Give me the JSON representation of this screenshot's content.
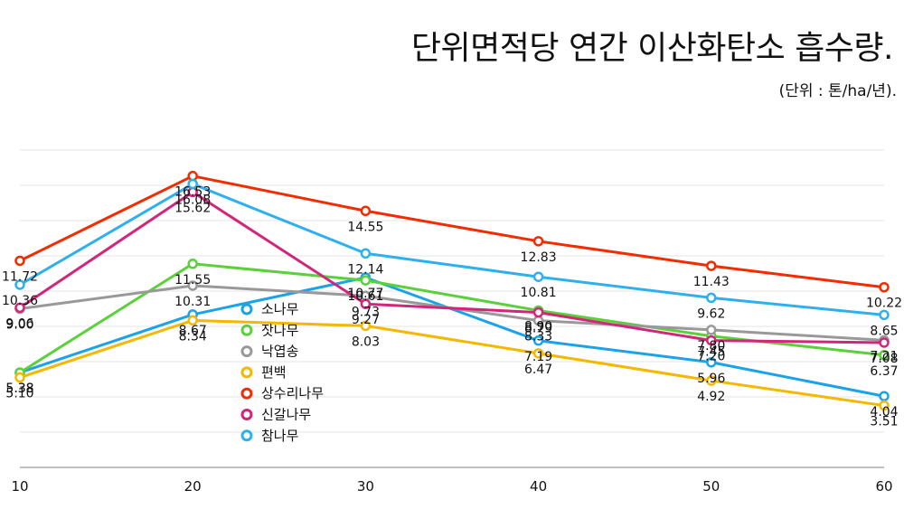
{
  "chart_data": {
    "type": "line",
    "title": "단위면적당 연간 이산화탄소 흡수량.",
    "subtitle": "(단위 : 톤/ha/년).",
    "x": [
      10,
      20,
      30,
      40,
      50,
      60
    ],
    "ylim": [
      0,
      20
    ],
    "grid": true,
    "legend_position": "center-left",
    "series": [
      {
        "name": "소나무",
        "color": "#1aa3e8",
        "values": [
          5.38,
          8.67,
          10.77,
          7.19,
          5.96,
          4.04
        ]
      },
      {
        "name": "잣나무",
        "color": "#5ad13a",
        "values": [
          5.38,
          11.55,
          10.61,
          8.9,
          7.45,
          6.37
        ]
      },
      {
        "name": "낙엽송",
        "color": "#999999",
        "values": [
          9.0,
          10.31,
          9.73,
          8.33,
          7.8,
          7.21
        ]
      },
      {
        "name": "편백",
        "color": "#f5b800",
        "values": [
          5.1,
          8.34,
          8.03,
          6.47,
          4.92,
          3.51
        ]
      },
      {
        "name": "상수리나무",
        "color": "#f22c00",
        "values": [
          11.72,
          16.53,
          14.55,
          12.83,
          11.43,
          10.22
        ]
      },
      {
        "name": "신갈나무",
        "color": "#d1267a",
        "values": [
          9.06,
          15.62,
          9.27,
          8.79,
          7.2,
          7.08
        ]
      },
      {
        "name": "참나무",
        "color": "#2fb0ee",
        "values": [
          10.36,
          16.08,
          12.14,
          10.81,
          9.62,
          8.65
        ]
      }
    ]
  }
}
